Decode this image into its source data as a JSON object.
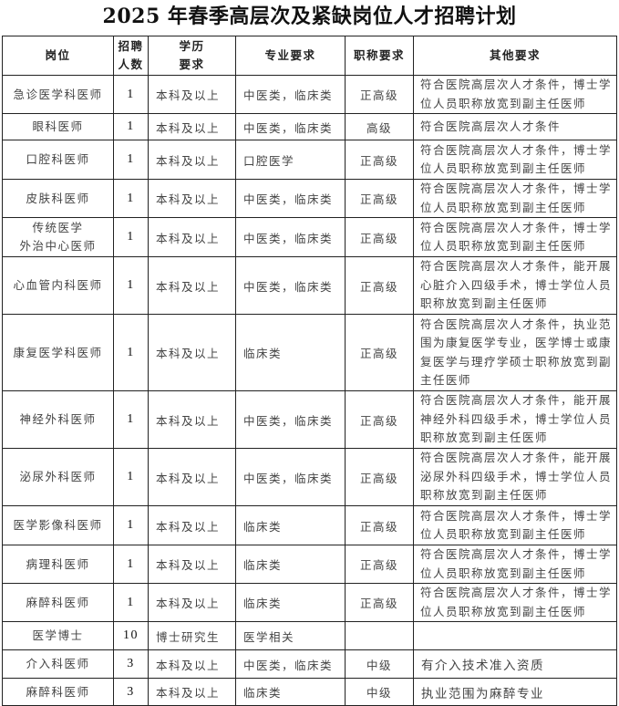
{
  "title": "2025 年春季高层次及紧缺岗位人才招聘计划",
  "headers": [
    "岗位",
    "招聘\n人数",
    "学历\n要求",
    "专业要求",
    "职称要求",
    "其他要求"
  ],
  "rows": [
    {
      "position": "急诊医学科医师",
      "count": "1",
      "education": "本科及以上",
      "major": "中医类，临床类",
      "title": "正高级",
      "other": "符合医院高层次人才条件，博士学位人员职称放宽到副主任医师"
    },
    {
      "position": "眼科医师",
      "count": "1",
      "education": "本科及以上",
      "major": "中医类，临床类",
      "title": "高级",
      "other": "符合医院高层次人才条件"
    },
    {
      "position": "口腔科医师",
      "count": "1",
      "education": "本科及以上",
      "major": "口腔医学",
      "title": "正高级",
      "other": "符合医院高层次人才条件，博士学位人员职称放宽到副主任医师"
    },
    {
      "position": "皮肤科医师",
      "count": "1",
      "education": "本科及以上",
      "major": "中医类，临床类",
      "title": "正高级",
      "other": "符合医院高层次人才条件，博士学位人员职称放宽到副主任医师"
    },
    {
      "position": "传统医学\n外治中心医师",
      "count": "1",
      "education": "本科及以上",
      "major": "中医类，临床类",
      "title": "正高级",
      "other": "符合医院高层次人才条件，博士学位人员职称放宽到副主任医师"
    },
    {
      "position": "心血管内科医师",
      "count": "1",
      "education": "本科及以上",
      "major": "中医类，临床类",
      "title": "正高级",
      "other": "符合医院高层次人才条件，能开展心脏介入四级手术，博士学位人员职称放宽到副主任医师"
    },
    {
      "position": "康复医学科医师",
      "count": "1",
      "education": "本科及以上",
      "major": "临床类",
      "title": "正高级",
      "other": "符合医院高层次人才条件，执业范围为康复医学专业，医学博士或康复医学与理疗学硕士职称放宽到副主任医师"
    },
    {
      "position": "神经外科医师",
      "count": "1",
      "education": "本科及以上",
      "major": "中医类，临床类",
      "title": "正高级",
      "other": "符合医院高层次人才条件，能开展神经外科四级手术，博士学位人员职称放宽到副主任医师"
    },
    {
      "position": "泌尿外科医师",
      "count": "1",
      "education": "本科及以上",
      "major": "中医类，临床类",
      "title": "正高级",
      "other": "符合医院高层次人才条件，能开展泌尿外科四级手术，博士学位人员职称放宽到副主任医师"
    },
    {
      "position": "医学影像科医师",
      "count": "1",
      "education": "本科及以上",
      "major": "临床类",
      "title": "正高级",
      "other": "符合医院高层次人才条件，博士学位人员职称放宽到副主任医师"
    },
    {
      "position": "病理科医师",
      "count": "1",
      "education": "本科及以上",
      "major": "临床类",
      "title": "正高级",
      "other": "符合医院高层次人才条件，博士学位人员职称放宽到副主任医师"
    },
    {
      "position": "麻醉科医师",
      "count": "1",
      "education": "本科及以上",
      "major": "临床类",
      "title": "正高级",
      "other": "符合医院高层次人才条件，博士学位人员职称放宽到副主任医师"
    },
    {
      "position": "医学博士",
      "count": "10",
      "education": "博士研究生",
      "major": "医学相关",
      "title": "",
      "other": ""
    },
    {
      "position": "介入科医师",
      "count": "3",
      "education": "本科及以上",
      "major": "中医类，临床类",
      "title": "中级",
      "other": "有介入技术准入资质"
    },
    {
      "position": "麻醉科医师",
      "count": "3",
      "education": "本科及以上",
      "major": "临床类",
      "title": "中级",
      "other": "执业范围为麻醉专业"
    }
  ]
}
